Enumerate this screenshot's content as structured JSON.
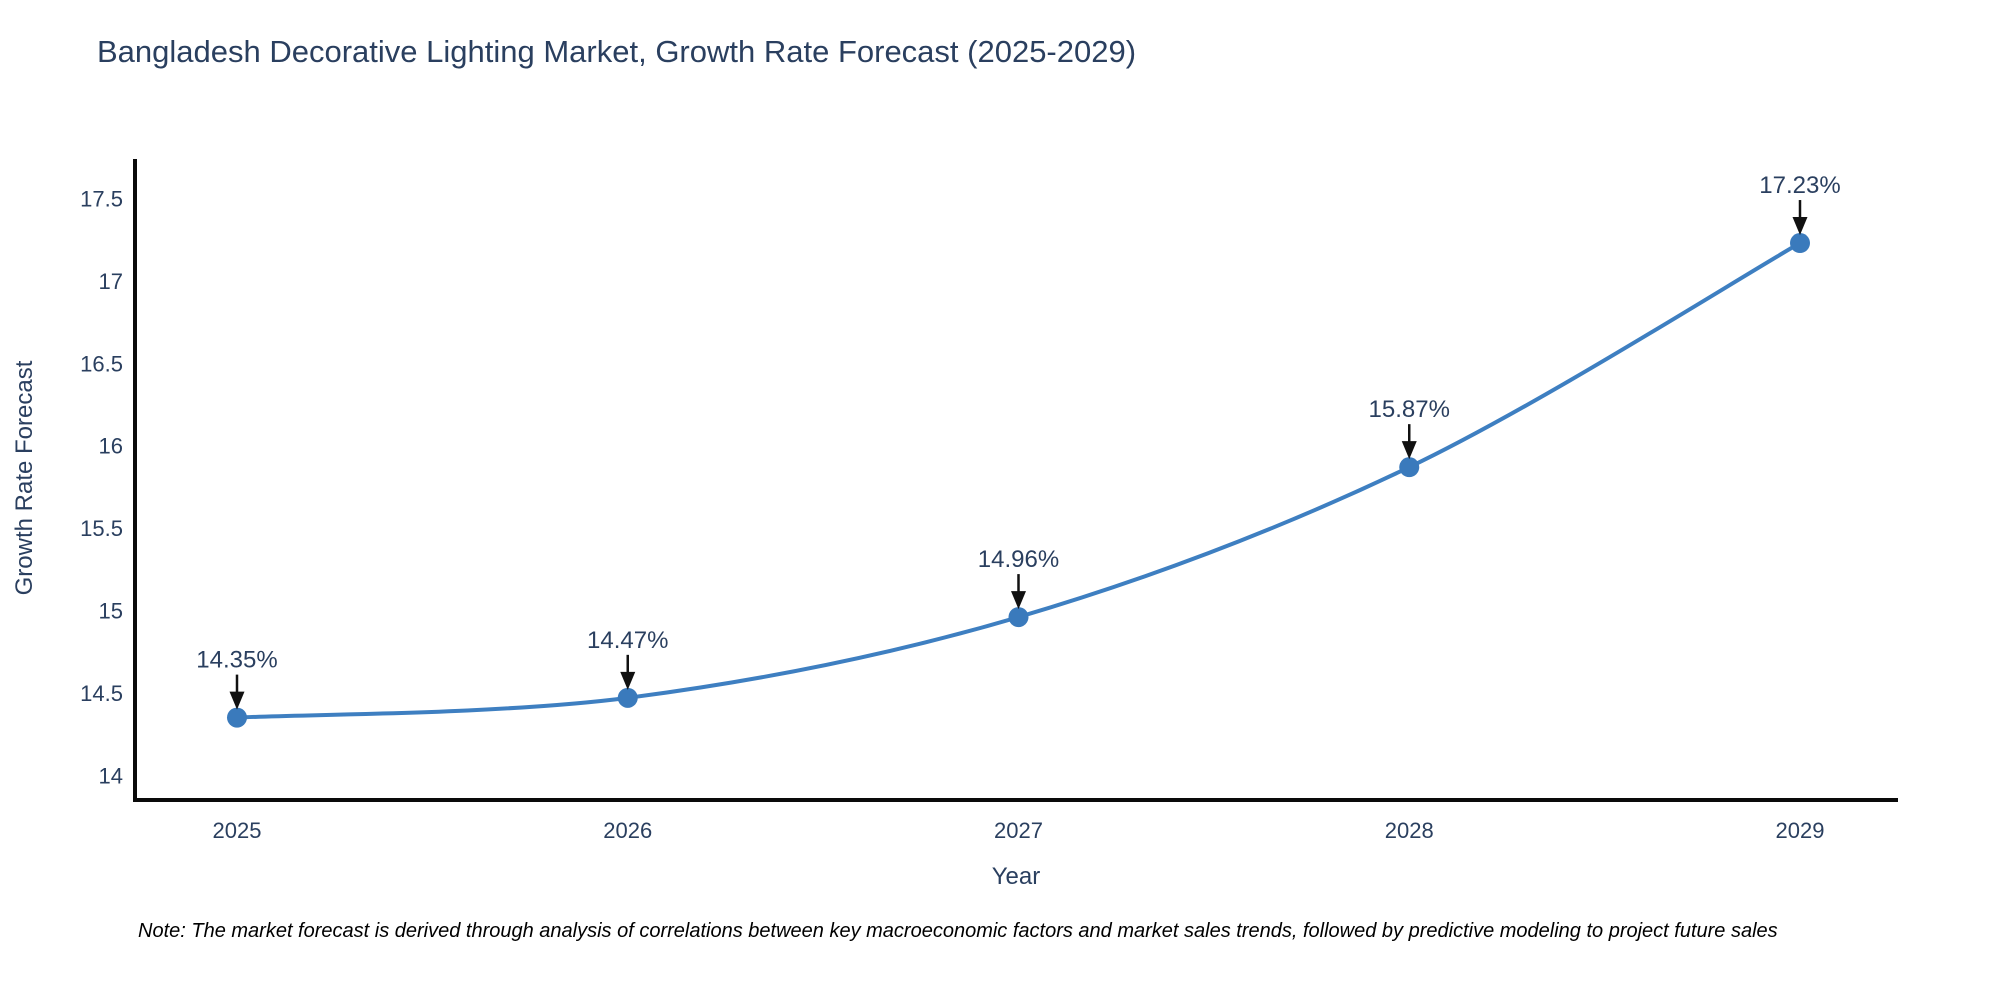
{
  "chart_data": {
    "type": "line",
    "title": "Bangladesh Decorative Lighting Market, Growth Rate Forecast (2025-2029)",
    "xlabel": "Year",
    "ylabel": "Growth Rate Forecast",
    "x": [
      "2025",
      "2026",
      "2027",
      "2028",
      "2029"
    ],
    "values": [
      14.35,
      14.47,
      14.96,
      15.87,
      17.23
    ],
    "point_labels": [
      "14.35%",
      "14.47%",
      "14.96%",
      "15.87%",
      "17.23%"
    ],
    "yticks": [
      14,
      14.5,
      15,
      15.5,
      16,
      16.5,
      17,
      17.5
    ],
    "ylim": [
      13.85,
      17.74
    ],
    "line_shape": "spline",
    "grid": false,
    "legend": "none",
    "colors": {
      "line": "#3e7fc1",
      "marker": "#3a7abc",
      "axis": "#0a0a0a",
      "text": "#2a3f5f",
      "arrow": "#111111"
    }
  },
  "note": {
    "text": "Note: The market forecast is derived through analysis of correlations between key macroeconomic factors and market sales trends, followed by predictive modeling to project future sales"
  }
}
